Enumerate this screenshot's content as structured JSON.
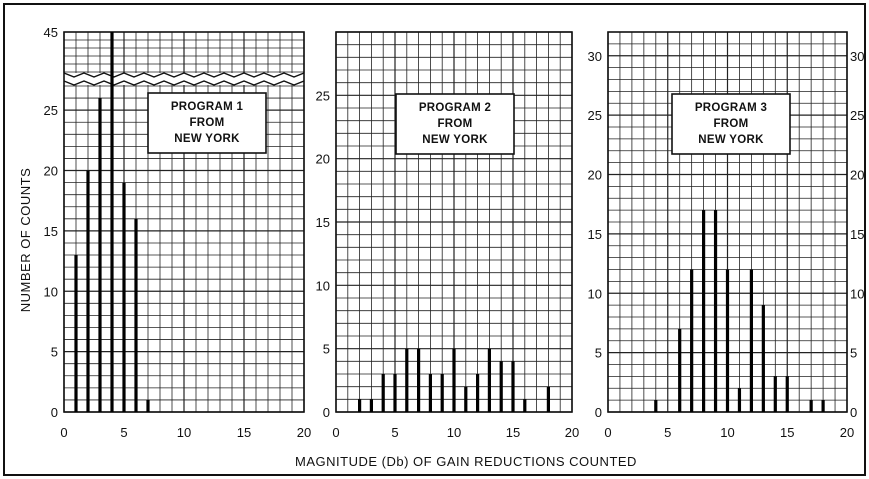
{
  "xlabel": "MAGNITUDE (Db) OF GAIN REDUCTIONS COUNTED",
  "ylabel": "NUMBER OF COUNTS",
  "chart_data": [
    {
      "type": "bar",
      "title_lines": [
        "PROGRAM 1",
        "FROM",
        "NEW YORK"
      ],
      "x": [
        1,
        2,
        3,
        4,
        5,
        6,
        7
      ],
      "values": [
        13,
        20,
        26,
        45,
        19,
        16,
        1
      ],
      "xlim": [
        0,
        20
      ],
      "ylim": [
        0,
        27
      ],
      "axis_break": true,
      "upper_range": [
        40,
        45
      ],
      "xticks": [
        "0",
        "5",
        "10",
        "15",
        "20"
      ],
      "yticks": [
        "0",
        "5",
        "10",
        "15",
        "20",
        "25"
      ],
      "upper_ytick": "45",
      "grid": true
    },
    {
      "type": "bar",
      "title_lines": [
        "PROGRAM 2",
        "FROM",
        "NEW YORK"
      ],
      "x": [
        2,
        3,
        4,
        5,
        6,
        7,
        8,
        9,
        10,
        11,
        12,
        13,
        14,
        15,
        16,
        18
      ],
      "values": [
        1,
        1,
        3,
        3,
        5,
        5,
        3,
        3,
        5,
        2,
        3,
        5,
        4,
        4,
        1,
        2
      ],
      "xlim": [
        0,
        20
      ],
      "ylim": [
        0,
        30
      ],
      "xticks": [
        "0",
        "5",
        "10",
        "15",
        "20"
      ],
      "yticks": [
        "0",
        "5",
        "10",
        "15",
        "20",
        "25"
      ],
      "grid": true
    },
    {
      "type": "bar",
      "title_lines": [
        "PROGRAM 3",
        "FROM",
        "NEW YORK"
      ],
      "x": [
        4,
        6,
        7,
        8,
        9,
        10,
        11,
        12,
        13,
        14,
        15,
        17,
        18
      ],
      "values": [
        1,
        7,
        12,
        17,
        17,
        12,
        2,
        12,
        9,
        3,
        3,
        1,
        1
      ],
      "xlim": [
        0,
        20
      ],
      "ylim": [
        0,
        32
      ],
      "xticks": [
        "0",
        "5",
        "10",
        "15",
        "20"
      ],
      "yticks": [
        "0",
        "5",
        "10",
        "15",
        "20",
        "25",
        "30"
      ],
      "right_yticks": [
        "0",
        "5",
        "10",
        "15",
        "20",
        "25",
        "30"
      ],
      "grid": true
    }
  ]
}
